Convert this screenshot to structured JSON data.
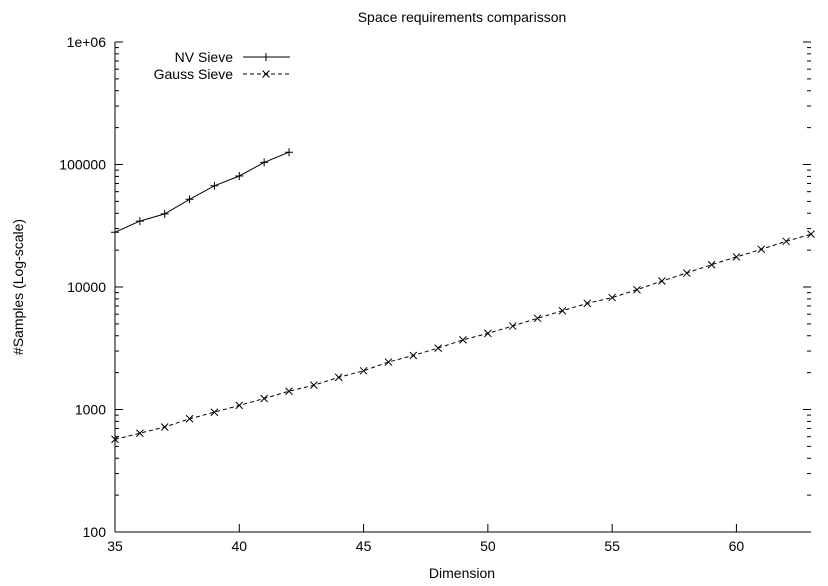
{
  "chart_data": {
    "type": "line",
    "title": "Space requirements comparisson",
    "xlabel": "Dimension",
    "ylabel": "#Samples (Log-scale)",
    "xlim": [
      35,
      63
    ],
    "ylim": [
      100,
      1000000
    ],
    "yscale": "log",
    "x_ticks": [
      35,
      40,
      45,
      50,
      55,
      60
    ],
    "x_tick_labels": [
      "35",
      "40",
      "45",
      "50",
      "55",
      "60"
    ],
    "y_ticks": [
      100,
      1000,
      10000,
      100000,
      1000000
    ],
    "y_tick_labels": [
      "100",
      "1000",
      "10000",
      "100000",
      "1e+06"
    ],
    "grid": false,
    "legend_position": "top-left",
    "series": [
      {
        "name": "NV Sieve",
        "marker": "plus",
        "line_style": "solid",
        "color": "#000000",
        "x": [
          35,
          36,
          37,
          38,
          39,
          40,
          41,
          42
        ],
        "y": [
          28000,
          34500,
          39500,
          52000,
          67000,
          80500,
          104000,
          126000
        ]
      },
      {
        "name": "Gauss Sieve",
        "marker": "cross",
        "line_style": "dashed",
        "color": "#000000",
        "x": [
          35,
          36,
          37,
          38,
          39,
          40,
          41,
          42,
          43,
          44,
          45,
          46,
          47,
          48,
          49,
          50,
          51,
          52,
          53,
          54,
          55,
          56,
          57,
          58,
          59,
          60,
          61,
          62,
          63
        ],
        "y": [
          570,
          640,
          720,
          840,
          950,
          1080,
          1230,
          1410,
          1580,
          1830,
          2070,
          2440,
          2760,
          3170,
          3700,
          4180,
          4800,
          5550,
          6400,
          7350,
          8200,
          9500,
          11200,
          13000,
          15200,
          17600,
          20300,
          23600,
          27000
        ]
      }
    ]
  }
}
